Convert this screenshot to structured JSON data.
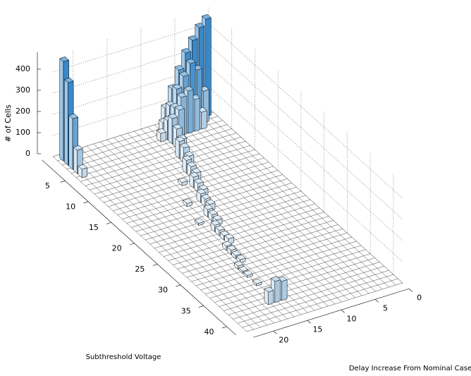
{
  "chart_data": {
    "type": "bar3d",
    "zlabel": "# of Cells",
    "xlabel": "Subthreshold Voltage",
    "ylabel": "Delay Increase From Nominal Case",
    "bars": {
      "voltage": [
        1,
        2,
        3,
        4,
        5,
        1,
        1,
        1,
        1,
        1,
        1,
        1,
        2,
        2,
        2,
        2,
        2,
        2,
        2,
        3,
        3,
        3,
        3,
        3,
        3,
        3,
        4,
        4,
        5,
        6,
        7,
        8,
        9,
        10,
        11,
        12,
        13,
        14,
        15,
        16,
        17,
        18,
        19,
        20,
        21,
        22,
        23,
        24,
        25,
        26,
        27,
        28,
        29,
        30,
        31,
        32,
        34,
        12,
        16,
        20,
        38,
        38,
        38
      ],
      "delay": [
        22,
        22,
        22,
        22,
        22,
        1,
        2,
        3,
        4,
        5,
        6,
        7,
        2,
        3,
        4,
        5,
        6,
        7,
        8,
        3,
        4,
        5,
        6,
        7,
        8,
        9,
        7,
        8,
        8,
        8,
        9,
        9,
        9,
        10,
        10,
        10,
        11,
        11,
        11,
        12,
        12,
        12,
        13,
        13,
        13,
        14,
        14,
        14,
        14,
        15,
        15,
        15,
        15,
        16,
        16,
        16,
        16,
        12,
        14,
        15,
        15,
        16,
        17
      ],
      "counts": [
        470,
        390,
        240,
        110,
        40,
        460,
        430,
        380,
        330,
        260,
        180,
        100,
        150,
        260,
        300,
        250,
        200,
        130,
        60,
        80,
        150,
        200,
        180,
        140,
        90,
        40,
        150,
        120,
        90,
        60,
        80,
        70,
        50,
        60,
        50,
        40,
        50,
        40,
        30,
        40,
        35,
        30,
        35,
        30,
        25,
        30,
        25,
        20,
        25,
        20,
        20,
        15,
        15,
        15,
        10,
        10,
        10,
        15,
        15,
        10,
        90,
        100,
        60
      ]
    },
    "color": "#3d8fd1",
    "xlim": [
      0,
      42
    ],
    "xticks": [
      5,
      10,
      15,
      20,
      25,
      30,
      35,
      40
    ],
    "ylim": [
      0,
      23
    ],
    "yticks": [
      0,
      5,
      10,
      15,
      20
    ],
    "zlim": [
      0,
      480
    ],
    "zticks": [
      0,
      100,
      200,
      300,
      400
    ],
    "grid": true
  }
}
